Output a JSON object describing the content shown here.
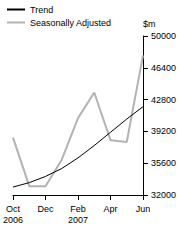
{
  "chart_data": {
    "type": "line",
    "ylabel": "$m",
    "categories": [
      "Oct\n2006",
      null,
      "Dec",
      null,
      "Feb\n2007",
      null,
      "Apr",
      null,
      "Jun"
    ],
    "series": [
      {
        "name": "Trend",
        "color": "#000000",
        "values": [
          32900,
          33400,
          34100,
          35000,
          36200,
          37600,
          39100,
          40600,
          42000
        ]
      },
      {
        "name": "Seasonally Adjusted",
        "color": "#b3b3b3",
        "values": [
          38500,
          33000,
          33000,
          36000,
          40700,
          43600,
          38200,
          38000,
          47800
        ]
      }
    ],
    "ylim": [
      32000,
      50000
    ],
    "yticks": [
      32000,
      35600,
      39200,
      42800,
      46400,
      50000
    ],
    "grid": false,
    "legend": "top-left"
  }
}
